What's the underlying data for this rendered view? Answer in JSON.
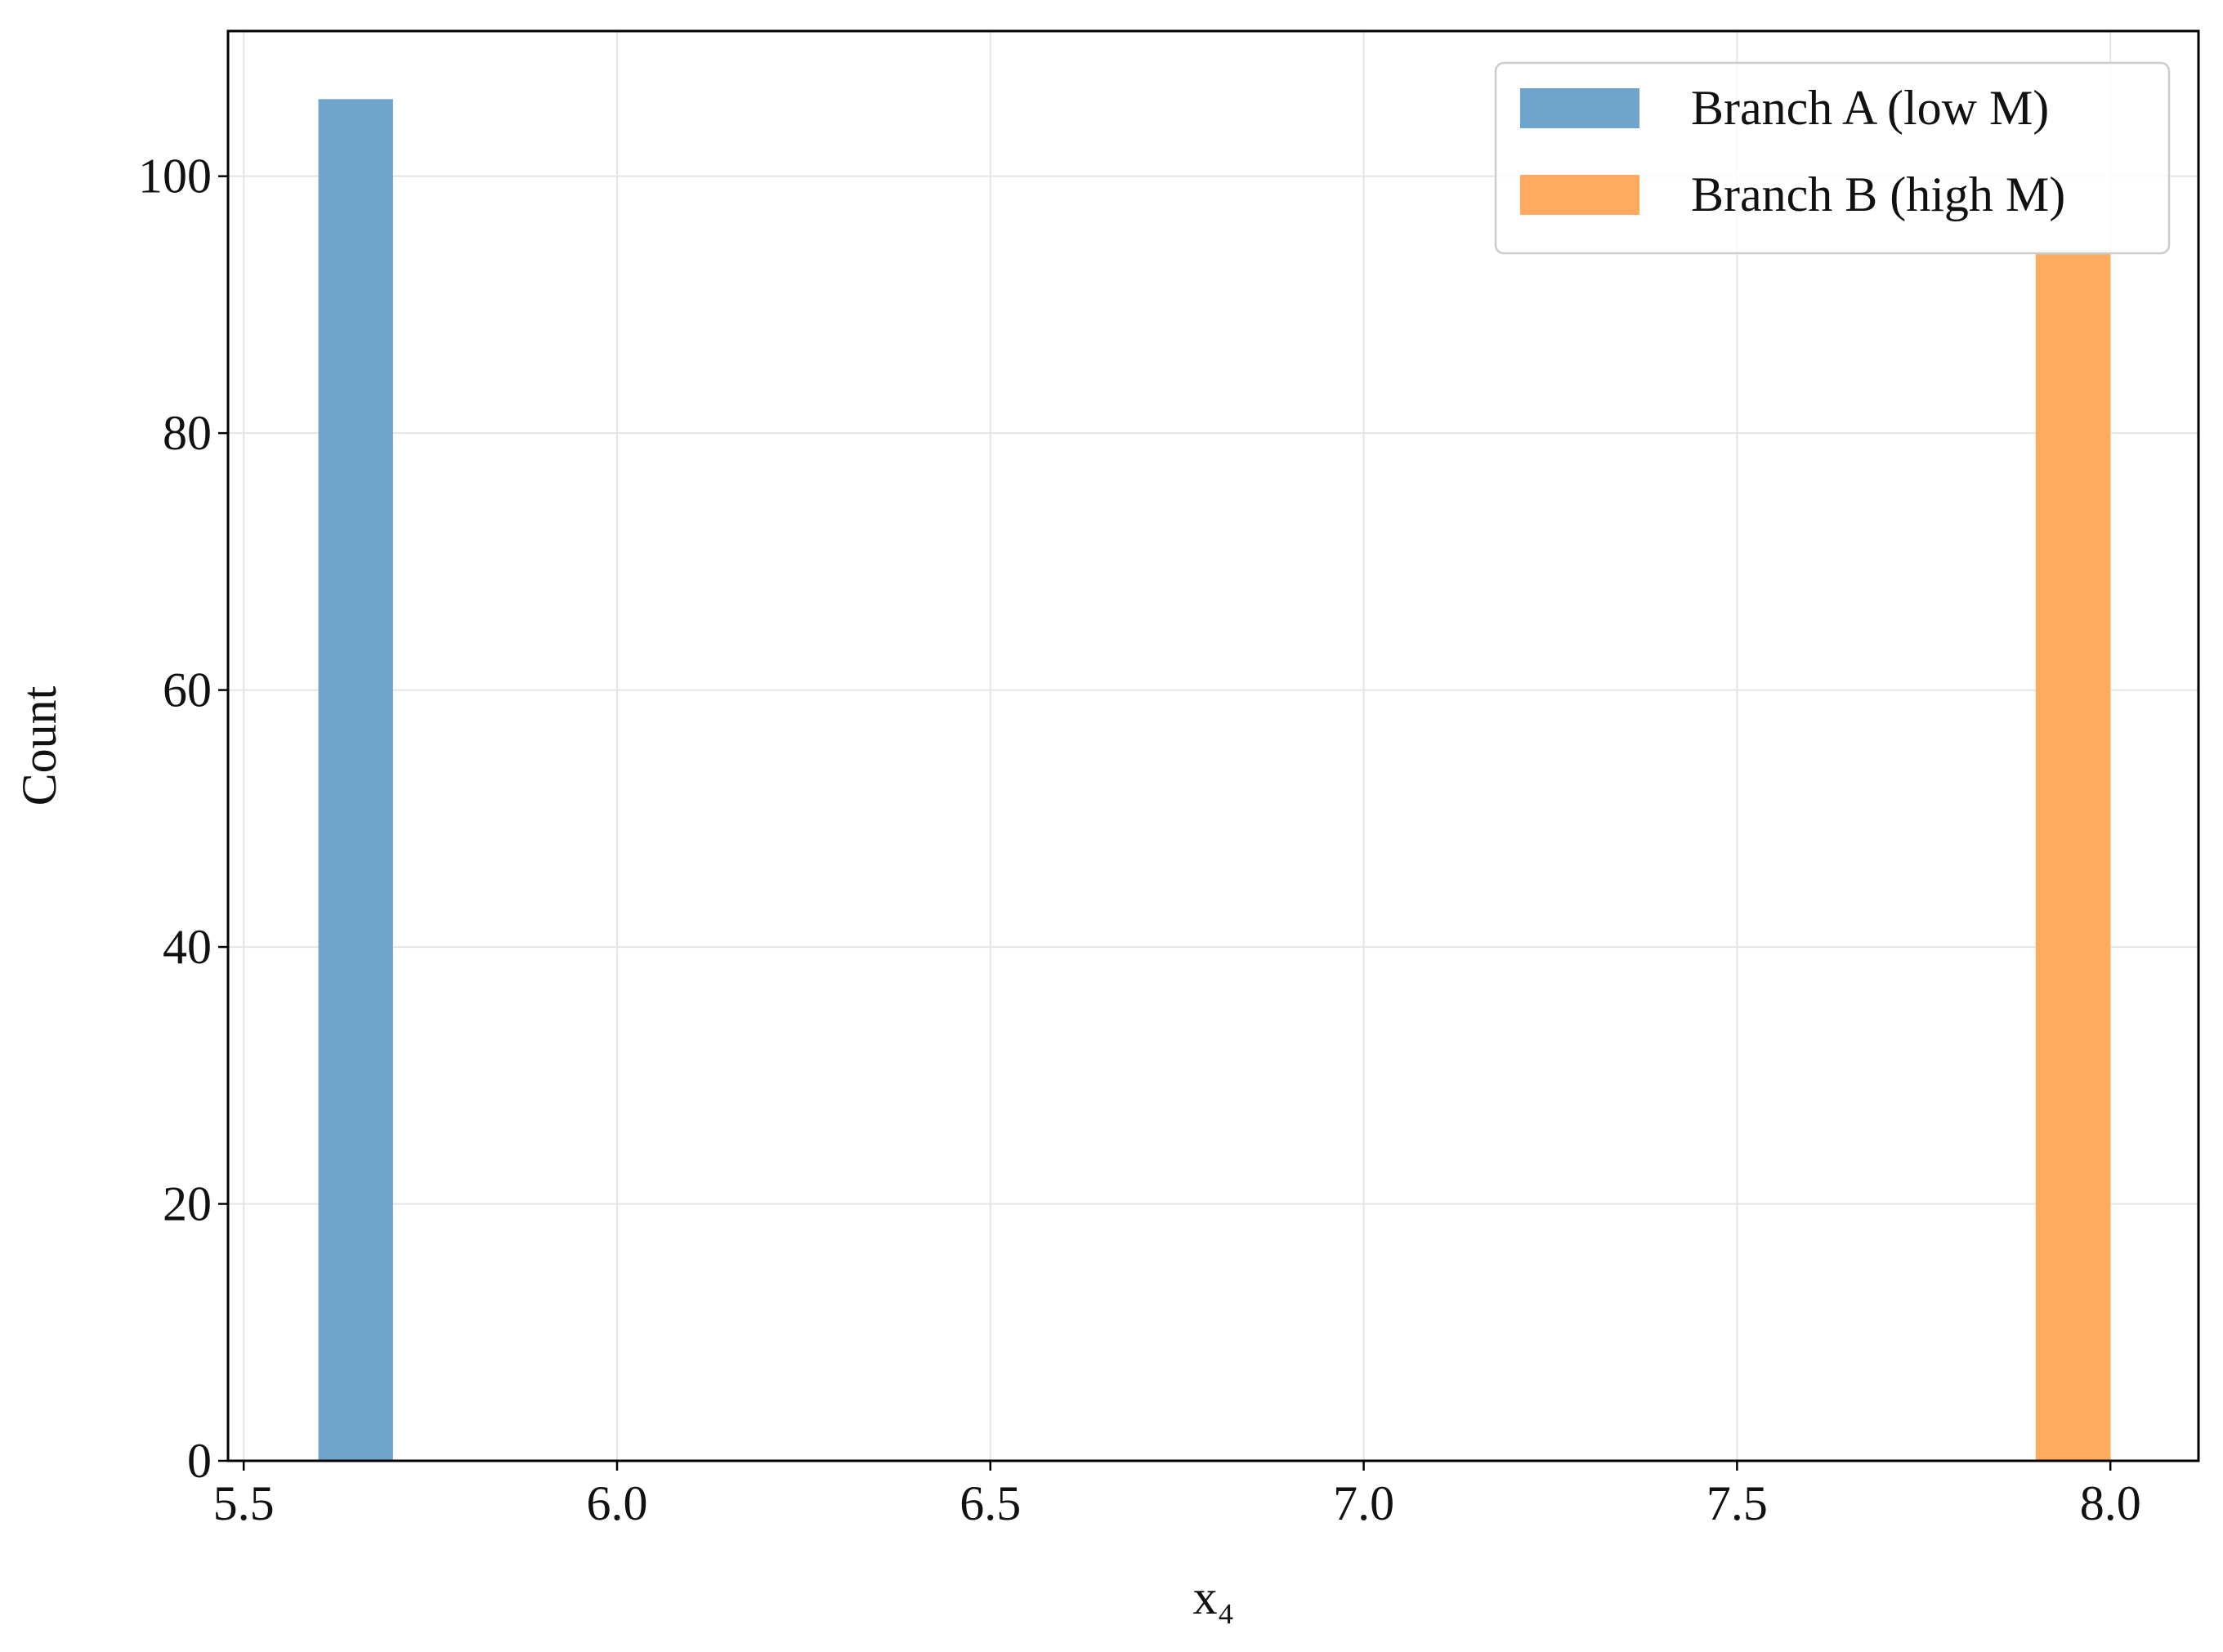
{
  "chart_data": {
    "type": "histogram",
    "xlabel": "x₄",
    "ylabel": "Count",
    "series": [
      {
        "name": "Branch A (low M)",
        "color": "#6fa5cd",
        "bins": [
          5.6,
          5.7
        ],
        "values": [
          106
        ]
      },
      {
        "name": "Branch B (high M)",
        "color": "#ffaa5e",
        "bins": [
          7.9,
          8.0
        ],
        "values": [
          94
        ]
      }
    ],
    "xlim": [
      5.479,
      8.118
    ],
    "xticks": [
      {
        "value": 5.5,
        "label": "5.5"
      },
      {
        "value": 6,
        "label": "6.0"
      },
      {
        "value": 6.5,
        "label": "6.5"
      },
      {
        "value": 7,
        "label": "7.0"
      },
      {
        "value": 7.5,
        "label": "7.5"
      },
      {
        "value": 8,
        "label": "8.0"
      }
    ],
    "ylim": [
      0,
      111.3
    ],
    "yticks": [
      0,
      20,
      40,
      60,
      80,
      100
    ],
    "grid": true,
    "legend": "upper right"
  }
}
